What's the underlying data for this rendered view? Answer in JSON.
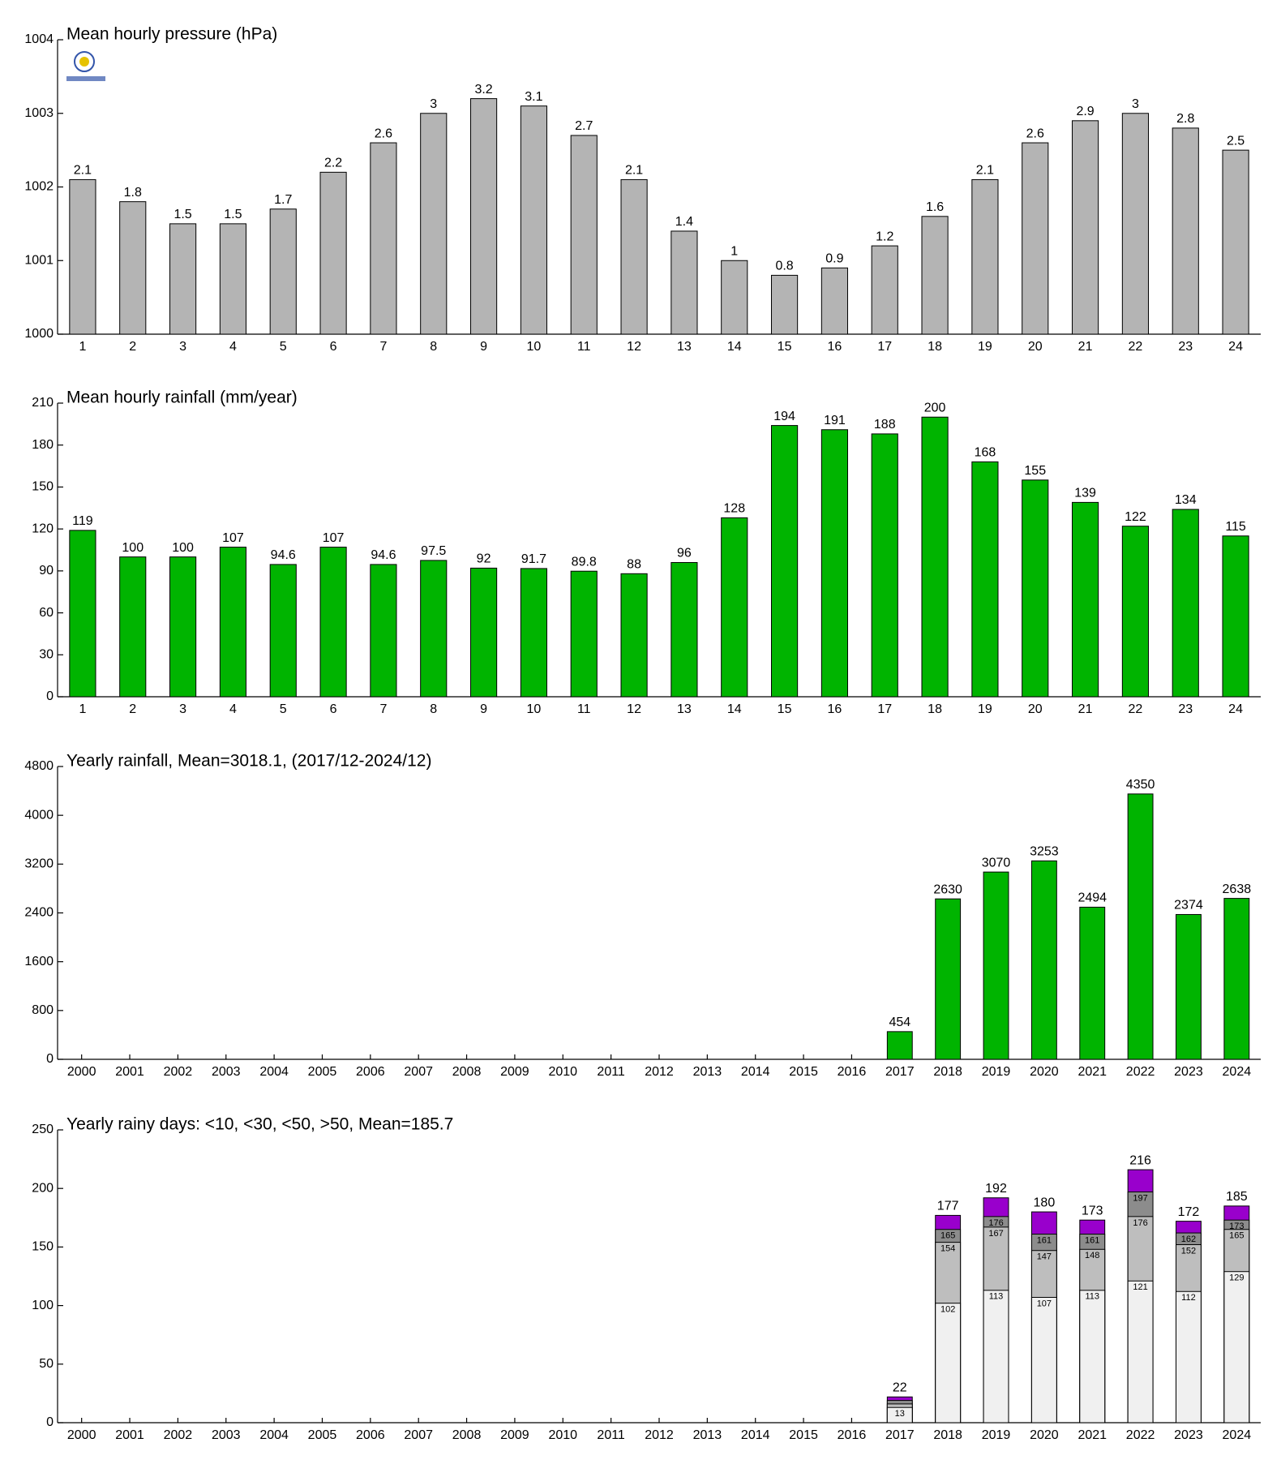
{
  "chart_data": [
    {
      "type": "bar",
      "title": "Mean hourly pressure (hPa)",
      "categories": [
        "1",
        "2",
        "3",
        "4",
        "5",
        "6",
        "7",
        "8",
        "9",
        "10",
        "11",
        "12",
        "13",
        "14",
        "15",
        "16",
        "17",
        "18",
        "19",
        "20",
        "21",
        "22",
        "23",
        "24"
      ],
      "values": [
        1002.1,
        1001.8,
        1001.5,
        1001.5,
        1001.7,
        1002.2,
        1002.6,
        1003,
        1003.2,
        1003.1,
        1002.7,
        1002.1,
        1001.4,
        1001,
        1000.8,
        1000.9,
        1001.2,
        1001.6,
        1002.1,
        1002.6,
        1002.9,
        1003,
        1002.8,
        1002.5
      ],
      "value_labels": [
        "2.1",
        "1.8",
        "1.5",
        "1.5",
        "1.7",
        "2.2",
        "2.6",
        "3",
        "3.2",
        "3.1",
        "2.7",
        "2.1",
        "1.4",
        "1",
        "0.8",
        "0.9",
        "1.2",
        "1.6",
        "2.1",
        "2.6",
        "2.9",
        "3",
        "2.8",
        "2.5"
      ],
      "color": "#b4b4b4",
      "ylim": [
        1000,
        1004
      ],
      "yticks": [
        1000,
        1001,
        1002,
        1003,
        1004
      ]
    },
    {
      "type": "bar",
      "title": "Mean hourly rainfall (mm/year)",
      "categories": [
        "1",
        "2",
        "3",
        "4",
        "5",
        "6",
        "7",
        "8",
        "9",
        "10",
        "11",
        "12",
        "13",
        "14",
        "15",
        "16",
        "17",
        "18",
        "19",
        "20",
        "21",
        "22",
        "23",
        "24"
      ],
      "values": [
        119,
        100,
        100,
        107,
        94.6,
        107,
        94.6,
        97.5,
        92,
        91.7,
        89.8,
        88,
        96,
        128,
        194,
        191,
        188,
        200,
        168,
        155,
        139,
        122,
        134,
        115
      ],
      "color": "#00b400",
      "ylim": [
        0,
        210
      ],
      "yticks": [
        0,
        30,
        60,
        90,
        120,
        150,
        180,
        210
      ]
    },
    {
      "type": "bar",
      "title": "Yearly rainfall, Mean=3018.1, (2017/12-2024/12)",
      "categories": [
        "2000",
        "2001",
        "2002",
        "2003",
        "2004",
        "2005",
        "2006",
        "2007",
        "2008",
        "2009",
        "2010",
        "2011",
        "2012",
        "2013",
        "2014",
        "2015",
        "2016",
        "2017",
        "2018",
        "2019",
        "2020",
        "2021",
        "2022",
        "2023",
        "2024"
      ],
      "values": [
        null,
        null,
        null,
        null,
        null,
        null,
        null,
        null,
        null,
        null,
        null,
        null,
        null,
        null,
        null,
        null,
        null,
        454,
        2630,
        3070,
        3253,
        2494,
        4350,
        2374,
        2638
      ],
      "color": "#00b400",
      "ylim": [
        0,
        4800
      ],
      "yticks": [
        0,
        800,
        1600,
        2400,
        3200,
        4000,
        4800
      ]
    },
    {
      "type": "bar",
      "barmode": "overlay",
      "title": "Yearly rainy days: <10, <30, <50, >50, Mean=185.7",
      "categories": [
        "2000",
        "2001",
        "2002",
        "2003",
        "2004",
        "2005",
        "2006",
        "2007",
        "2008",
        "2009",
        "2010",
        "2011",
        "2012",
        "2013",
        "2014",
        "2015",
        "2016",
        "2017",
        "2018",
        "2019",
        "2020",
        "2021",
        "2022",
        "2023",
        "2024"
      ],
      "series": [
        {
          "color": "#f0f0f0",
          "values": [
            null,
            null,
            null,
            null,
            null,
            null,
            null,
            null,
            null,
            null,
            null,
            null,
            null,
            null,
            null,
            null,
            null,
            13,
            102,
            113,
            107,
            113,
            121,
            112,
            129
          ]
        },
        {
          "color": "#bebebe",
          "values": [
            null,
            null,
            null,
            null,
            null,
            null,
            null,
            null,
            null,
            null,
            null,
            null,
            null,
            null,
            null,
            null,
            null,
            16,
            154,
            167,
            147,
            148,
            176,
            152,
            165
          ],
          "value_labels": [
            null,
            null,
            null,
            null,
            null,
            null,
            null,
            null,
            null,
            null,
            null,
            null,
            null,
            null,
            null,
            null,
            null,
            null,
            "154",
            "167",
            "147",
            "148",
            "176",
            "152",
            "165"
          ]
        },
        {
          "color": "#8c8c8c",
          "values": [
            null,
            null,
            null,
            null,
            null,
            null,
            null,
            null,
            null,
            null,
            null,
            null,
            null,
            null,
            null,
            null,
            null,
            19,
            165,
            176,
            161,
            161,
            197,
            162,
            173
          ],
          "value_labels": [
            null,
            null,
            null,
            null,
            null,
            null,
            null,
            null,
            null,
            null,
            null,
            null,
            null,
            null,
            null,
            null,
            null,
            null,
            "165",
            "176",
            "161",
            "161",
            "197",
            "162",
            "173"
          ]
        },
        {
          "color": "#9900cc",
          "values": [
            null,
            null,
            null,
            null,
            null,
            null,
            null,
            null,
            null,
            null,
            null,
            null,
            null,
            null,
            null,
            null,
            null,
            22,
            177,
            192,
            180,
            173,
            216,
            172,
            185
          ]
        }
      ],
      "ylim": [
        0,
        250
      ],
      "yticks": [
        0,
        50,
        100,
        150,
        200,
        250
      ]
    }
  ]
}
